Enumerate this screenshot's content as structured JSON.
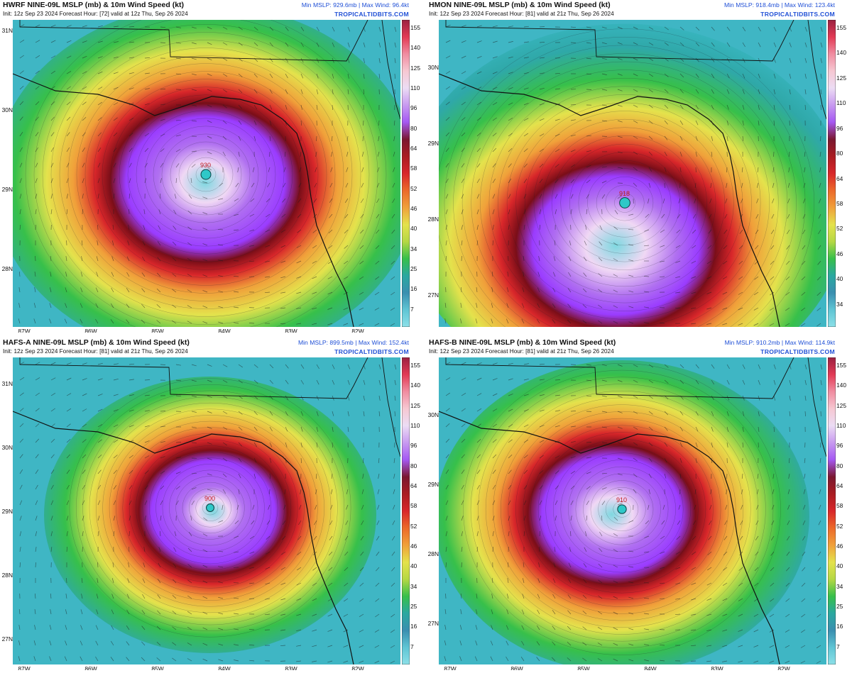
{
  "panels": [
    {
      "title": "HWRF NINE-09L MSLP (mb) & 10m Wind Speed (kt)",
      "subtitle": "Init: 12z Sep 23 2024   Forecast Hour: [72]   valid at 12z Thu, Sep 26 2024",
      "minmax": "Min MSLP: 929.6mb | Max Wind: 96.4kt",
      "brand": "TROPICALTIDBITS.COM",
      "center_label": "930",
      "lat_labels": [
        "31N",
        "30N",
        "29N",
        "28N",
        "27N"
      ],
      "lon_labels": [
        "87W",
        "86W",
        "85W",
        "84W",
        "83W",
        "82W"
      ],
      "colorbar_ticks": [
        "155",
        "140",
        "125",
        "110",
        "96",
        "80",
        "64",
        "58",
        "52",
        "46",
        "40",
        "34",
        "25",
        "16",
        "7"
      ]
    },
    {
      "title": "HMON NINE-09L MSLP (mb) & 10m Wind Speed (kt)",
      "subtitle": "Init: 12z Sep 23 2024   Forecast Hour: [81]   valid at 21z Thu, Sep 26 2024",
      "minmax": "Min MSLP: 918.4mb | Max Wind: 123.4kt",
      "brand": "TROPICALTIDBITS.COM",
      "center_label": "918",
      "lat_labels": [
        "30N",
        "29N",
        "28N",
        "27N"
      ],
      "lon_labels": [],
      "colorbar_ticks": [
        "155",
        "140",
        "125",
        "110",
        "96",
        "80",
        "64",
        "58",
        "52",
        "46",
        "40",
        "34"
      ]
    },
    {
      "title": "HAFS-A NINE-09L MSLP (mb) & 10m Wind Speed (kt)",
      "subtitle": "Init: 12z Sep 23 2024   Forecast Hour: [81]   valid at 21z Thu, Sep 26 2024",
      "minmax": "Min MSLP: 899.5mb | Max Wind: 152.4kt",
      "brand": "TROPICALTIDBITS.COM",
      "center_label": "900",
      "lat_labels": [
        "31N",
        "30N",
        "29N",
        "28N",
        "27N"
      ],
      "lon_labels": [
        "87W",
        "86W",
        "85W",
        "84W",
        "83W",
        "82W"
      ],
      "colorbar_ticks": [
        "155",
        "140",
        "125",
        "110",
        "96",
        "80",
        "64",
        "58",
        "52",
        "46",
        "40",
        "34",
        "25",
        "16",
        "7"
      ]
    },
    {
      "title": "HAFS-B NINE-09L MSLP (mb) & 10m Wind Speed (kt)",
      "subtitle": "Init: 12z Sep 23 2024   Forecast Hour: [81]   valid at 21z Thu, Sep 26 2024",
      "minmax": "Min MSLP: 910.2mb | Max Wind: 114.9kt",
      "brand": "TROPICALTIDBITS.COM",
      "center_label": "910",
      "lat_labels": [
        "30N",
        "29N",
        "28N",
        "27N"
      ],
      "lon_labels": [
        "87W",
        "86W",
        "85W",
        "84W",
        "83W",
        "82W"
      ],
      "colorbar_ticks": [
        "155",
        "140",
        "125",
        "110",
        "96",
        "80",
        "64",
        "58",
        "52",
        "46",
        "40",
        "34",
        "25",
        "16",
        "7"
      ]
    }
  ],
  "colors": {
    "bg_low": "#3fb6c4",
    "bg_mid": "#2f98a8",
    "green": "#37c04a",
    "yellow": "#e4e24c",
    "orange": "#f0a03a",
    "red": "#d8262a",
    "darkred": "#7a0e18",
    "purple": "#9a3cff",
    "lilac": "#d8a8ff",
    "land": "#5fbfbe",
    "coast": "#111111",
    "accent": "#1f4fd6"
  }
}
